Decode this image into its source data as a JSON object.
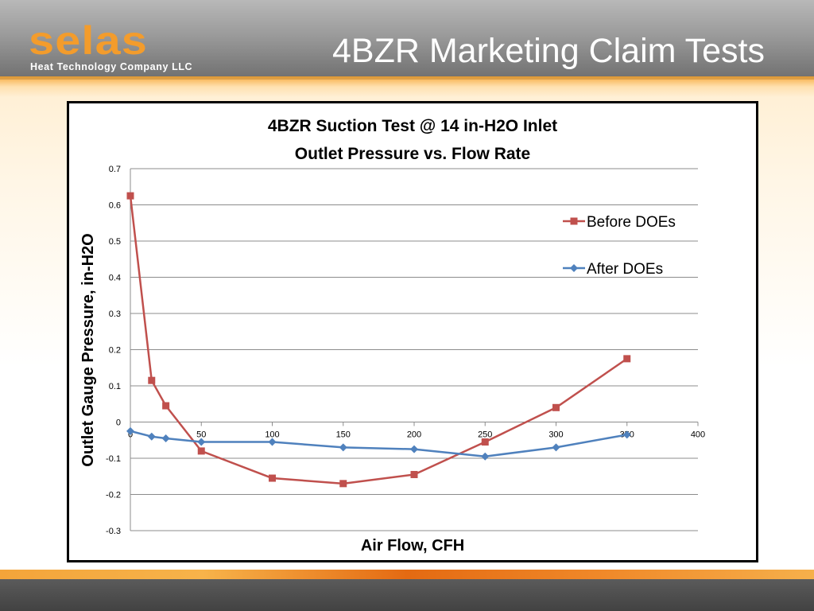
{
  "header": {
    "logo_text": "selas",
    "company": "Heat Technology Company LLC",
    "title": "4BZR Marketing Claim Tests"
  },
  "colors": {
    "before": "#c0504d",
    "after": "#4f81bd",
    "logo": "#f39c2c"
  },
  "chart_data": {
    "type": "line",
    "title": "4BZR Suction Test @ 14 in-H2O Inlet",
    "subtitle": "Outlet Pressure vs. Flow Rate",
    "xlabel": "Air Flow, CFH",
    "ylabel": "Outlet Gauge Pressure, in-H2O",
    "xlim": [
      0,
      400
    ],
    "ylim": [
      -0.3,
      0.7
    ],
    "xticks": [
      0,
      50,
      100,
      150,
      200,
      250,
      300,
      350,
      400
    ],
    "yticks": [
      -0.3,
      -0.2,
      -0.1,
      0,
      0.1,
      0.2,
      0.3,
      0.4,
      0.5,
      0.6,
      0.7
    ],
    "xtick_labels": [
      "0",
      "50",
      "100",
      "150",
      "200",
      "250",
      "300",
      "350",
      "400"
    ],
    "ytick_labels": [
      "-0.3",
      "-0.2",
      "-0.1",
      "0",
      "0.1",
      "0.2",
      "0.3",
      "0.4",
      "0.5",
      "0.6",
      "0.7"
    ],
    "grid": true,
    "legend": "top-right",
    "series": [
      {
        "name": "Before DOEs",
        "marker": "square",
        "x": [
          0,
          15,
          25,
          50,
          100,
          150,
          200,
          250,
          300,
          350
        ],
        "y": [
          0.625,
          0.115,
          0.045,
          -0.08,
          -0.155,
          -0.17,
          -0.145,
          -0.055,
          0.04,
          0.175
        ]
      },
      {
        "name": "After DOEs",
        "marker": "diamond",
        "x": [
          0,
          15,
          25,
          50,
          100,
          150,
          200,
          250,
          300,
          350
        ],
        "y": [
          -0.025,
          -0.04,
          -0.045,
          -0.055,
          -0.055,
          -0.07,
          -0.075,
          -0.095,
          -0.07,
          -0.035
        ]
      }
    ]
  }
}
